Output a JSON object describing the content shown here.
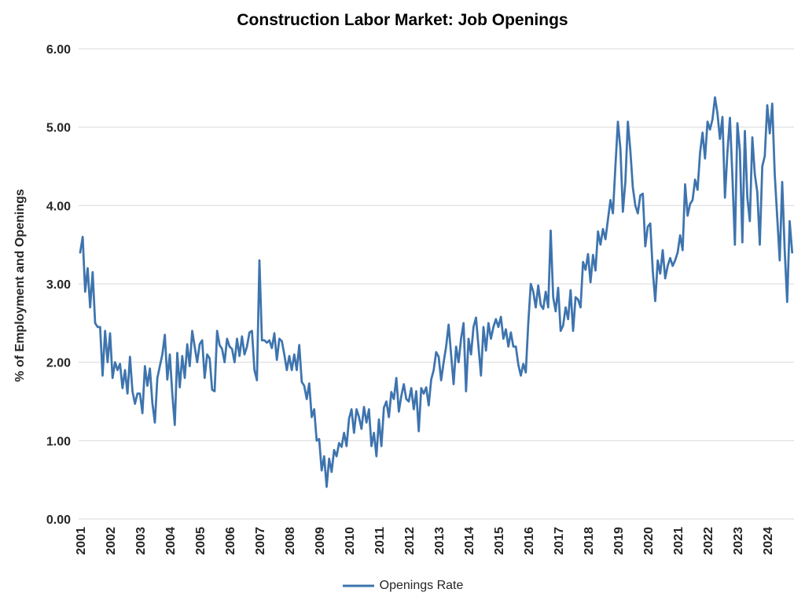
{
  "chart_data": {
    "type": "line",
    "title": "Construction Labor Market: Job Openings",
    "xlabel": "",
    "ylabel": "% of Employment and Openings",
    "ylim": [
      0,
      6
    ],
    "ytick_step": 1,
    "ytick_labels": [
      "0.00",
      "1.00",
      "2.00",
      "3.00",
      "4.00",
      "5.00",
      "6.00"
    ],
    "xtick_labels": [
      "2001",
      "2002",
      "2003",
      "2004",
      "2005",
      "2006",
      "2007",
      "2008",
      "2009",
      "2010",
      "2011",
      "2012",
      "2013",
      "2014",
      "2015",
      "2016",
      "2017",
      "2018",
      "2019",
      "2020",
      "2021",
      "2022",
      "2023",
      "2024"
    ],
    "grid": true,
    "legend_position": "bottom",
    "legend": [
      "Openings Rate"
    ],
    "colors": {
      "line": "#3E74AE",
      "grid": "#d9d9d9",
      "tick_text": "#262626",
      "title_text": "#000000"
    },
    "x_start_month": "2001-01",
    "frequency": "monthly",
    "series": [
      {
        "name": "Openings Rate",
        "color": "#3E74AE",
        "values_by_year": {
          "2001": [
            3.4,
            3.6,
            2.9,
            3.2,
            2.7,
            3.15,
            2.5,
            2.45,
            2.45,
            1.83,
            2.4,
            2.0
          ],
          "2002": [
            2.37,
            1.8,
            2.0,
            1.9,
            1.98,
            1.67,
            1.9,
            1.6,
            2.07,
            1.63,
            1.47,
            1.6
          ],
          "2003": [
            1.6,
            1.35,
            1.95,
            1.7,
            1.92,
            1.48,
            1.23,
            1.8,
            1.95,
            2.1,
            2.35,
            1.78
          ],
          "2004": [
            2.1,
            1.6,
            1.2,
            2.12,
            1.68,
            2.08,
            1.8,
            2.23,
            1.95,
            2.4,
            2.2,
            2.0
          ],
          "2005": [
            2.23,
            2.28,
            1.8,
            2.1,
            2.05,
            1.65,
            1.63,
            2.4,
            2.22,
            2.17,
            2.0,
            2.3
          ],
          "2006": [
            2.2,
            2.17,
            2.0,
            2.3,
            2.08,
            2.33,
            2.1,
            2.2,
            2.38,
            2.4,
            1.9,
            1.77
          ],
          "2007": [
            3.3,
            2.28,
            2.28,
            2.25,
            2.28,
            2.18,
            2.37,
            2.03,
            2.3,
            2.27,
            2.1,
            1.9
          ],
          "2008": [
            2.08,
            1.9,
            2.1,
            1.9,
            2.22,
            1.75,
            1.7,
            1.53,
            1.73,
            1.3,
            1.4,
            1.0
          ],
          "2009": [
            1.02,
            0.62,
            0.8,
            0.41,
            0.77,
            0.6,
            0.88,
            0.8,
            0.97,
            0.92,
            1.1,
            0.93
          ],
          "2010": [
            1.28,
            1.4,
            1.1,
            1.4,
            1.3,
            1.15,
            1.43,
            1.23,
            1.4,
            0.93,
            1.1,
            0.8
          ],
          "2011": [
            1.27,
            0.93,
            1.42,
            1.5,
            1.3,
            1.62,
            1.53,
            1.8,
            1.37,
            1.57,
            1.72,
            1.53
          ],
          "2012": [
            1.5,
            1.67,
            1.4,
            1.63,
            1.12,
            1.67,
            1.6,
            1.68,
            1.45,
            1.78,
            1.9,
            2.13
          ],
          "2013": [
            2.07,
            1.77,
            2.0,
            2.2,
            2.48,
            2.1,
            1.72,
            2.2,
            2.0,
            2.3,
            2.5,
            1.63
          ],
          "2014": [
            2.3,
            2.1,
            2.45,
            2.57,
            2.2,
            1.83,
            2.45,
            2.15,
            2.5,
            2.3,
            2.45,
            2.55
          ],
          "2015": [
            2.45,
            2.58,
            2.3,
            2.42,
            2.2,
            2.38,
            2.2,
            2.2,
            1.97,
            1.83,
            1.98,
            1.87
          ],
          "2016": [
            2.5,
            3.0,
            2.9,
            2.7,
            2.98,
            2.73,
            2.68,
            2.9,
            2.7,
            3.68,
            2.83,
            2.65
          ],
          "2017": [
            2.95,
            2.4,
            2.47,
            2.7,
            2.55,
            2.92,
            2.4,
            2.83,
            2.8,
            2.7,
            3.28,
            3.18
          ],
          "2018": [
            3.38,
            3.02,
            3.37,
            3.17,
            3.67,
            3.5,
            3.7,
            3.57,
            3.82,
            4.07,
            3.9,
            4.5
          ],
          "2019": [
            5.07,
            4.73,
            3.92,
            4.3,
            5.07,
            4.7,
            4.23,
            4.0,
            3.9,
            4.13,
            4.15,
            3.48
          ],
          "2020": [
            3.73,
            3.77,
            3.17,
            2.78,
            3.3,
            3.13,
            3.43,
            3.07,
            3.23,
            3.33,
            3.23,
            3.3
          ],
          "2021": [
            3.4,
            3.62,
            3.43,
            4.27,
            3.87,
            4.02,
            4.07,
            4.33,
            4.2,
            4.67,
            4.93,
            4.6
          ],
          "2022": [
            5.07,
            4.97,
            5.1,
            5.38,
            5.17,
            4.85,
            5.13,
            4.1,
            4.68,
            5.12,
            4.37,
            3.5
          ],
          "2023": [
            5.05,
            4.7,
            3.53,
            4.95,
            4.1,
            3.8,
            4.87,
            4.4,
            4.17,
            3.5,
            4.5,
            4.63
          ],
          "2024": [
            5.28,
            4.92,
            5.3,
            4.4,
            3.85,
            3.3,
            4.3,
            3.43,
            2.77,
            3.8,
            3.4
          ]
        }
      }
    ]
  }
}
